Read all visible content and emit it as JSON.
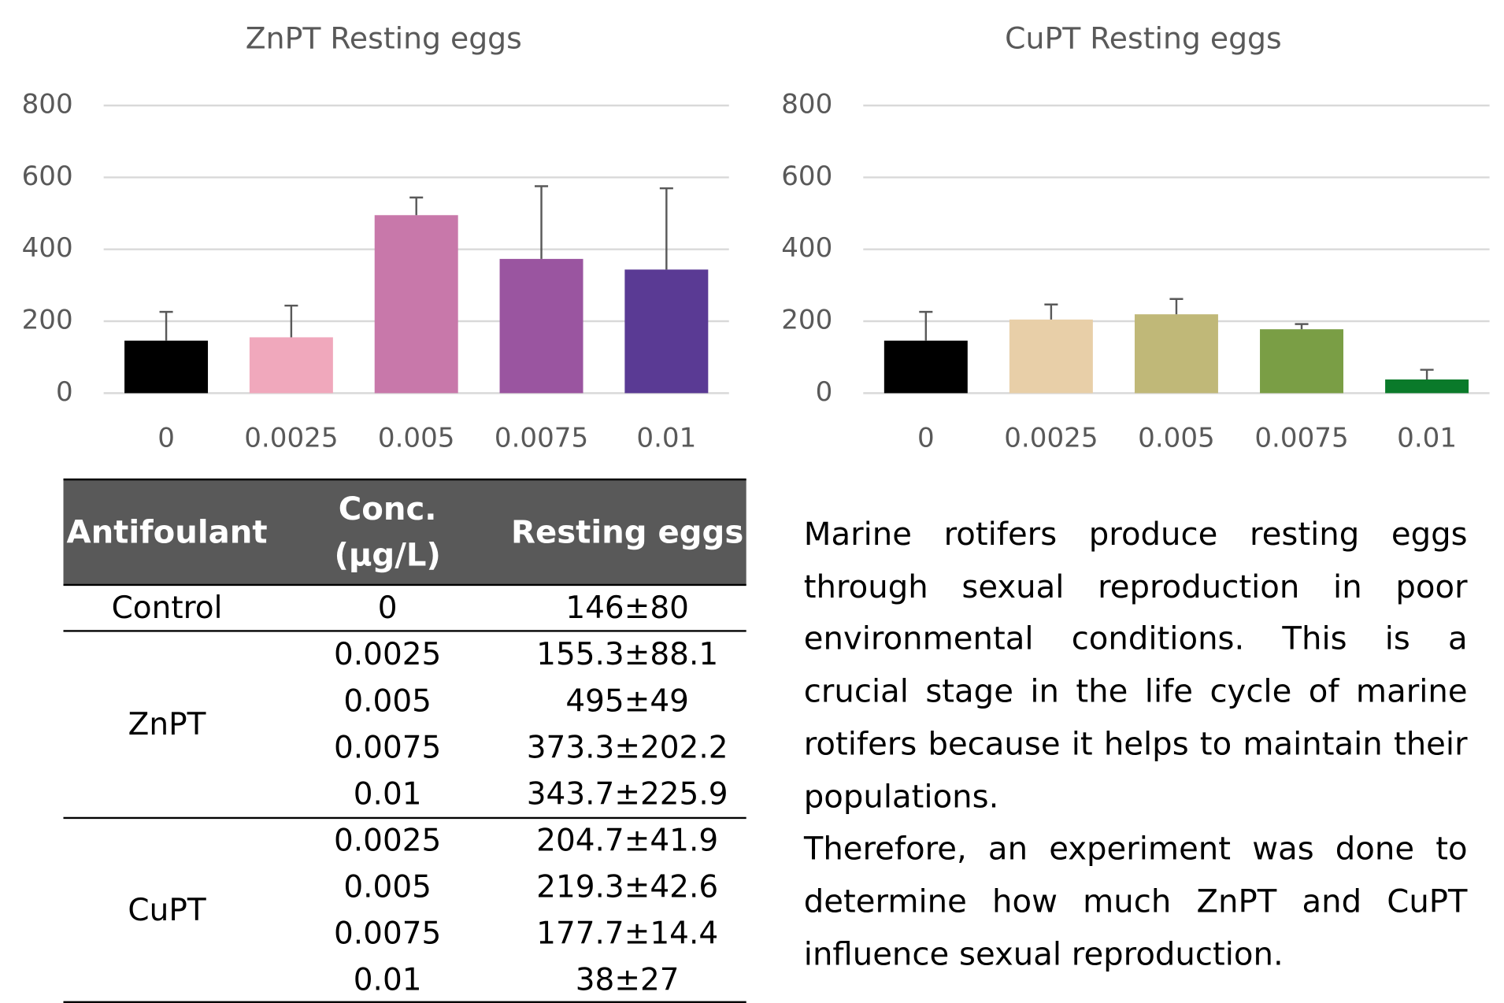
{
  "chart_data": [
    {
      "type": "bar",
      "title": "ZnPT Resting eggs",
      "categories": [
        "0",
        "0.0025",
        "0.005",
        "0.0075",
        "0.01"
      ],
      "values": [
        146,
        155.3,
        495,
        373.3,
        343.7
      ],
      "errors": [
        80,
        88.1,
        49,
        202.2,
        225.9
      ],
      "colors": [
        "#000000",
        "#f0a8bc",
        "#c878aa",
        "#9a55a0",
        "#5a3a94"
      ],
      "ylim": [
        0,
        800
      ],
      "yticks": [
        0,
        200,
        400,
        600,
        800
      ],
      "grid": true
    },
    {
      "type": "bar",
      "title": "CuPT Resting eggs",
      "categories": [
        "0",
        "0.0025",
        "0.005",
        "0.0075",
        "0.01"
      ],
      "values": [
        146,
        204.7,
        219.3,
        177.7,
        38
      ],
      "errors": [
        80,
        41.9,
        42.6,
        14.4,
        27
      ],
      "colors": [
        "#000000",
        "#e8cfa8",
        "#c0b878",
        "#7a9e45",
        "#0a7a2a"
      ],
      "ylim": [
        0,
        800
      ],
      "yticks": [
        0,
        200,
        400,
        600,
        800
      ],
      "grid": true
    }
  ],
  "table": {
    "header": [
      "Antifoulant",
      [
        "Conc.",
        "(μg/L)"
      ],
      "Resting eggs"
    ],
    "groups": [
      {
        "name": "Control",
        "rows": [
          [
            "0",
            "146±80"
          ]
        ]
      },
      {
        "name": "ZnPT",
        "rows": [
          [
            "0.0025",
            "155.3±88.1"
          ],
          [
            "0.005",
            "495±49"
          ],
          [
            "0.0075",
            "373.3±202.2"
          ],
          [
            "0.01",
            "343.7±225.9"
          ]
        ]
      },
      {
        "name": "CuPT",
        "rows": [
          [
            "0.0025",
            "204.7±41.9"
          ],
          [
            "0.005",
            "219.3±42.6"
          ],
          [
            "0.0075",
            "177.7±14.4"
          ],
          [
            "0.01",
            "38±27"
          ]
        ]
      }
    ]
  },
  "text": {
    "paragraphs": [
      "Marine rotifers produce resting eggs through sexual reproduction in poor environmental conditions. This is a crucial stage in the life cycle of marine rotifers because it helps to maintain their populations.",
      "Therefore, an experiment was done to determine how much ZnPT and CuPT influence sexual reproduction."
    ]
  }
}
